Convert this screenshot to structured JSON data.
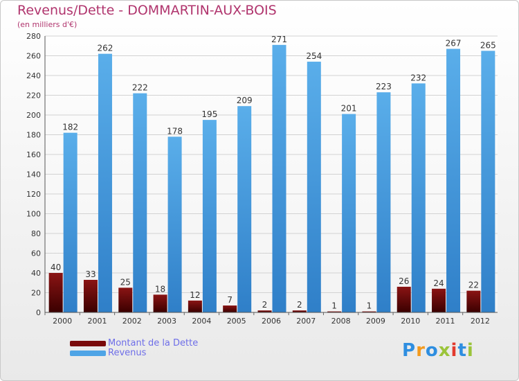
{
  "chart_data": {
    "type": "bar",
    "title": "Revenus/Dette - DOMMARTIN-AUX-BOIS",
    "subtitle": "(en milliers d'€)",
    "categories": [
      "2000",
      "2001",
      "2002",
      "2003",
      "2004",
      "2005",
      "2006",
      "2007",
      "2008",
      "2009",
      "2010",
      "2011",
      "2012"
    ],
    "series": [
      {
        "name": "Montant de la Dette",
        "color": "#7a0a0a",
        "values": [
          40,
          33,
          25,
          18,
          12,
          7,
          2,
          2,
          1,
          1,
          26,
          24,
          22
        ]
      },
      {
        "name": "Revenus",
        "color": "#4ea4e6",
        "values": [
          182,
          262,
          222,
          178,
          195,
          209,
          271,
          254,
          201,
          223,
          232,
          267,
          265
        ]
      }
    ],
    "ylim": [
      0,
      280
    ],
    "yticks": [
      0,
      20,
      40,
      60,
      80,
      100,
      120,
      140,
      160,
      180,
      200,
      220,
      240,
      260,
      280
    ],
    "grid": true,
    "legend": "bottom-left"
  },
  "logo": {
    "text": "Proxiti",
    "colors": [
      "#2e8ee0",
      "#f39a1e",
      "#2e8ee0",
      "#9bc43a",
      "#e23a2e",
      "#2e8ee0",
      "#9bc43a"
    ]
  }
}
